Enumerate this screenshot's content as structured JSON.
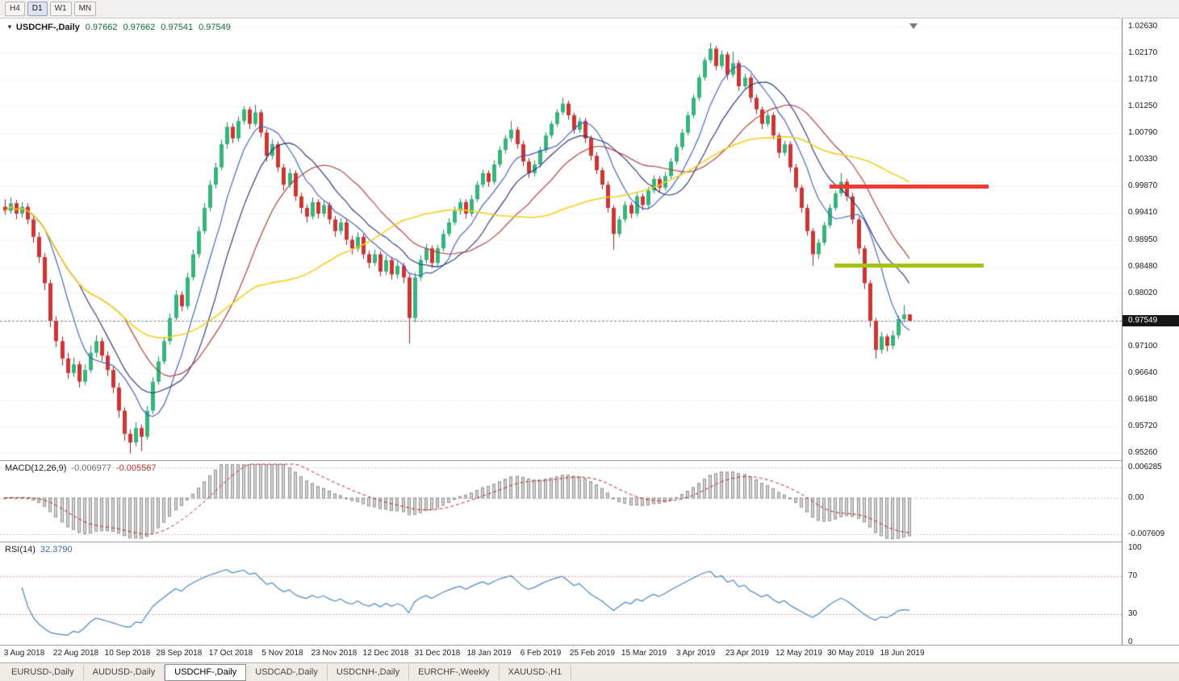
{
  "toolbar": {
    "timeframes": [
      {
        "label": "H4",
        "active": false
      },
      {
        "label": "D1",
        "active": true
      },
      {
        "label": "W1",
        "active": false
      },
      {
        "label": "MN",
        "active": false
      }
    ]
  },
  "chart_header": {
    "collapse_icon": "down-triangle",
    "symbol": "USDCHF-,Daily",
    "open": "0.97662",
    "high": "0.97662",
    "low": "0.97541",
    "close": "0.97549"
  },
  "main_chart": {
    "current_price": "0.97549",
    "bull_color": "#35b57c",
    "bull_wick": "#1d8a59",
    "bear_color": "#cf3434",
    "bear_wick": "#992222"
  },
  "macd": {
    "name": "MACD(12,26,9)",
    "value_main": "-0.006977",
    "value_signal": "-0.005567",
    "histogram_color": "#d6d6d6",
    "signal_color": "#c22020",
    "axis": [
      {
        "label": "0.006285",
        "value": 0.006285
      },
      {
        "label": "0.00",
        "value": 0
      },
      {
        "label": "-0.007609",
        "value": -0.007609
      }
    ]
  },
  "rsi": {
    "name": "RSI(14)",
    "value": "32.3790",
    "line_color": "#4a86c8",
    "levels": [
      70,
      30
    ],
    "axis": [
      {
        "label": "100",
        "value": 100
      },
      {
        "label": "70",
        "value": 70
      },
      {
        "label": "30",
        "value": 30
      },
      {
        "label": "0",
        "value": 0
      }
    ]
  },
  "tabs": [
    {
      "label": "EURUSD-,Daily",
      "active": false
    },
    {
      "label": "AUDUSD-,Daily",
      "active": false
    },
    {
      "label": "USDCHF-,Daily",
      "active": true
    },
    {
      "label": "USDCAD-,Daily",
      "active": false
    },
    {
      "label": "USDCNH-,Daily",
      "active": false
    },
    {
      "label": "EURCHF-,Weekly",
      "active": false
    },
    {
      "label": "XAUUSD-,H1",
      "active": false
    }
  ],
  "chart_data": [
    {
      "type": "candlestick",
      "title": "USDCHF-,Daily",
      "ylim": [
        0.9526,
        1.0263
      ],
      "y_ticks": [
        "1.02630",
        "1.02170",
        "1.01710",
        "1.01250",
        "1.00790",
        "1.00330",
        "0.99870",
        "0.99410",
        "0.98950",
        "0.98480",
        "0.98020",
        "",
        "0.97100",
        "0.96640",
        "0.96180",
        "0.95720",
        "0.95260"
      ],
      "x_labels": [
        "3 Aug 2018",
        "22 Aug 2018",
        "10 Sep 2018",
        "28 Sep 2018",
        "17 Oct 2018",
        "5 Nov 2018",
        "23 Nov 2018",
        "12 Dec 2018",
        "31 Dec 2018",
        "18 Jan 2019",
        "6 Feb 2019",
        "25 Feb 2019",
        "15 Mar 2019",
        "3 Apr 2019",
        "23 Apr 2019",
        "12 May 2019",
        "30 May 2019",
        "18 Jun 2019"
      ],
      "overlays": {
        "moving_averages": [
          {
            "period": 8,
            "color": "#3a56c4"
          },
          {
            "period": 14,
            "color": "#20307a"
          },
          {
            "period": 22,
            "color": "#b03030"
          },
          {
            "period": 45,
            "color": "#f2cf1d"
          }
        ],
        "horizontal_lines": [
          {
            "name": "resistance",
            "price": 0.9988,
            "color": "#ee3b34",
            "x_from": 1028,
            "x_to": 1225
          },
          {
            "name": "support",
            "price": 0.9851,
            "color": "#a6c212",
            "x_from": 1034,
            "x_to": 1219
          }
        ],
        "current_price": 0.97549
      },
      "ohlc": [
        [
          0.9952,
          0.9965,
          0.9938,
          0.9945
        ],
        [
          0.9945,
          0.9968,
          0.994,
          0.9958
        ],
        [
          0.9958,
          0.9964,
          0.993,
          0.994
        ],
        [
          0.994,
          0.996,
          0.9933,
          0.9952
        ],
        [
          0.9952,
          0.9958,
          0.9922,
          0.993
        ],
        [
          0.993,
          0.9936,
          0.989,
          0.99
        ],
        [
          0.99,
          0.9908,
          0.9855,
          0.9865
        ],
        [
          0.9865,
          0.9872,
          0.9808,
          0.982
        ],
        [
          0.982,
          0.9826,
          0.9744,
          0.9755
        ],
        [
          0.9755,
          0.9763,
          0.971,
          0.972
        ],
        [
          0.972,
          0.9728,
          0.9678,
          0.969
        ],
        [
          0.969,
          0.97,
          0.9655,
          0.9665
        ],
        [
          0.9665,
          0.9692,
          0.9658,
          0.968
        ],
        [
          0.968,
          0.9686,
          0.964,
          0.965
        ],
        [
          0.965,
          0.968,
          0.9644,
          0.967
        ],
        [
          0.967,
          0.9712,
          0.9665,
          0.97
        ],
        [
          0.97,
          0.973,
          0.9692,
          0.972
        ],
        [
          0.972,
          0.9726,
          0.9685,
          0.9695
        ],
        [
          0.9695,
          0.9702,
          0.966,
          0.967
        ],
        [
          0.967,
          0.9676,
          0.963,
          0.964
        ],
        [
          0.964,
          0.9648,
          0.9588,
          0.96
        ],
        [
          0.96,
          0.9606,
          0.9548,
          0.956
        ],
        [
          0.956,
          0.9568,
          0.9526,
          0.9545
        ],
        [
          0.9545,
          0.958,
          0.9538,
          0.957
        ],
        [
          0.957,
          0.9576,
          0.953,
          0.9555
        ],
        [
          0.9555,
          0.9608,
          0.955,
          0.96
        ],
        [
          0.96,
          0.9658,
          0.9594,
          0.965
        ],
        [
          0.965,
          0.9694,
          0.9645,
          0.9685
        ],
        [
          0.9685,
          0.9728,
          0.968,
          0.972
        ],
        [
          0.972,
          0.9768,
          0.9714,
          0.976
        ],
        [
          0.976,
          0.9808,
          0.9755,
          0.98
        ],
        [
          0.98,
          0.9806,
          0.9772,
          0.978
        ],
        [
          0.978,
          0.9838,
          0.9775,
          0.983
        ],
        [
          0.983,
          0.9878,
          0.9825,
          0.987
        ],
        [
          0.987,
          0.9918,
          0.9864,
          0.991
        ],
        [
          0.991,
          0.9958,
          0.9905,
          0.995
        ],
        [
          0.995,
          0.9998,
          0.9944,
          0.999
        ],
        [
          0.999,
          1.0028,
          0.9984,
          1.002
        ],
        [
          1.002,
          1.0068,
          1.0015,
          1.006
        ],
        [
          1.006,
          1.0098,
          1.0052,
          1.009
        ],
        [
          1.009,
          1.0096,
          1.0062,
          1.007
        ],
        [
          1.007,
          1.0108,
          1.0064,
          1.01
        ],
        [
          1.01,
          1.0126,
          1.0094,
          1.012
        ],
        [
          1.012,
          1.0125,
          1.0086,
          1.0095
        ],
        [
          1.0095,
          1.0128,
          1.009,
          1.0115
        ],
        [
          1.0115,
          1.012,
          1.0072,
          1.008
        ],
        [
          1.008,
          1.0086,
          1.003,
          1.004
        ],
        [
          1.004,
          1.0068,
          1.0034,
          1.006
        ],
        [
          1.006,
          1.0065,
          1.0012,
          1.002
        ],
        [
          1.002,
          1.0026,
          0.998,
          0.999
        ],
        [
          0.999,
          1.0018,
          0.9984,
          1.001
        ],
        [
          1.001,
          1.0015,
          0.9962,
          0.997
        ],
        [
          0.997,
          0.9976,
          0.994,
          0.995
        ],
        [
          0.995,
          0.9956,
          0.9925,
          0.9935
        ],
        [
          0.9935,
          0.9968,
          0.993,
          0.996
        ],
        [
          0.996,
          0.9965,
          0.9932,
          0.994
        ],
        [
          0.994,
          0.9962,
          0.9934,
          0.9955
        ],
        [
          0.9955,
          0.996,
          0.9922,
          0.993
        ],
        [
          0.993,
          0.9936,
          0.99,
          0.991
        ],
        [
          0.991,
          0.9932,
          0.9904,
          0.9925
        ],
        [
          0.9925,
          0.993,
          0.9886,
          0.9895
        ],
        [
          0.9895,
          0.9902,
          0.987,
          0.988
        ],
        [
          0.988,
          0.9908,
          0.9874,
          0.99
        ],
        [
          0.99,
          0.9905,
          0.9862,
          0.987
        ],
        [
          0.987,
          0.9876,
          0.9846,
          0.9855
        ],
        [
          0.9855,
          0.9878,
          0.985,
          0.987
        ],
        [
          0.987,
          0.9875,
          0.9832,
          0.984
        ],
        [
          0.984,
          0.9868,
          0.9834,
          0.986
        ],
        [
          0.986,
          0.9865,
          0.9826,
          0.9835
        ],
        [
          0.9835,
          0.9858,
          0.9828,
          0.985
        ],
        [
          0.985,
          0.9855,
          0.982,
          0.983
        ],
        [
          0.983,
          0.9838,
          0.9716,
          0.976
        ],
        [
          0.976,
          0.9838,
          0.9752,
          0.983
        ],
        [
          0.983,
          0.9868,
          0.9824,
          0.986
        ],
        [
          0.986,
          0.9888,
          0.9854,
          0.988
        ],
        [
          0.988,
          0.9885,
          0.9846,
          0.9855
        ],
        [
          0.9855,
          0.9886,
          0.985,
          0.988
        ],
        [
          0.988,
          0.9912,
          0.9874,
          0.9905
        ],
        [
          0.9905,
          0.9932,
          0.99,
          0.9925
        ],
        [
          0.9925,
          0.9952,
          0.992,
          0.9945
        ],
        [
          0.9945,
          0.9966,
          0.9938,
          0.996
        ],
        [
          0.996,
          0.9965,
          0.9932,
          0.994
        ],
        [
          0.994,
          0.9972,
          0.9935,
          0.9965
        ],
        [
          0.9965,
          0.9996,
          0.996,
          0.999
        ],
        [
          0.999,
          1.0016,
          0.9985,
          1.001
        ],
        [
          1.001,
          1.0015,
          0.9986,
          0.9995
        ],
        [
          0.9995,
          1.0032,
          0.999,
          1.0025
        ],
        [
          1.0025,
          1.0056,
          1.002,
          1.005
        ],
        [
          1.005,
          1.0076,
          1.0044,
          1.007
        ],
        [
          1.007,
          1.01,
          1.0064,
          1.0085
        ],
        [
          1.0085,
          1.009,
          1.0052,
          1.006
        ],
        [
          1.006,
          1.0066,
          1.0022,
          1.003
        ],
        [
          1.003,
          1.0036,
          1.0002,
          1.001
        ],
        [
          1.001,
          1.0032,
          1.0004,
          1.0025
        ],
        [
          1.0025,
          1.0056,
          1.002,
          1.005
        ],
        [
          1.005,
          1.008,
          1.0045,
          1.0075
        ],
        [
          1.0075,
          1.01,
          1.007,
          1.0095
        ],
        [
          1.0095,
          1.012,
          1.009,
          1.0115
        ],
        [
          1.0115,
          1.014,
          1.011,
          1.013
        ],
        [
          1.013,
          1.0135,
          1.0102,
          1.011
        ],
        [
          1.011,
          1.0115,
          1.0078,
          1.0085
        ],
        [
          1.0085,
          1.0106,
          1.008,
          1.01
        ],
        [
          1.01,
          1.0105,
          1.0062,
          1.007
        ],
        [
          1.007,
          1.0075,
          1.0032,
          1.004
        ],
        [
          1.004,
          1.0046,
          1.0008,
          1.0015
        ],
        [
          1.0015,
          1.002,
          0.9982,
          0.999
        ],
        [
          0.999,
          0.9996,
          0.9942,
          0.995
        ],
        [
          0.995,
          0.9955,
          0.9878,
          0.9905
        ],
        [
          0.9905,
          0.9936,
          0.99,
          0.993
        ],
        [
          0.993,
          0.9962,
          0.9925,
          0.9955
        ],
        [
          0.9955,
          0.996,
          0.9932,
          0.994
        ],
        [
          0.994,
          0.9976,
          0.9935,
          0.997
        ],
        [
          0.997,
          0.9975,
          0.9946,
          0.9955
        ],
        [
          0.9955,
          0.9986,
          0.995,
          0.998
        ],
        [
          0.998,
          1.0006,
          0.9975,
          1.0
        ],
        [
          1.0,
          1.0005,
          0.9976,
          0.9985
        ],
        [
          0.9985,
          1.0012,
          0.998,
          1.0005
        ],
        [
          1.0005,
          1.0036,
          1.0,
          1.003
        ],
        [
          1.003,
          1.006,
          1.0025,
          1.0055
        ],
        [
          1.0055,
          1.0086,
          1.005,
          1.008
        ],
        [
          1.008,
          1.0116,
          1.0075,
          1.011
        ],
        [
          1.011,
          1.0146,
          1.0105,
          1.014
        ],
        [
          1.014,
          1.018,
          1.0135,
          1.0175
        ],
        [
          1.0175,
          1.021,
          1.017,
          1.0205
        ],
        [
          1.0205,
          1.0235,
          1.02,
          1.0225
        ],
        [
          1.0225,
          1.023,
          1.0188,
          1.0195
        ],
        [
          1.0195,
          1.0222,
          1.019,
          1.0215
        ],
        [
          1.0215,
          1.022,
          1.0172,
          1.018
        ],
        [
          1.018,
          1.022,
          1.0175,
          1.02
        ],
        [
          1.02,
          1.0205,
          1.0152,
          1.016
        ],
        [
          1.016,
          1.0182,
          1.0155,
          1.0175
        ],
        [
          1.0175,
          1.018,
          1.0132,
          1.014
        ],
        [
          1.014,
          1.0146,
          1.0112,
          1.012
        ],
        [
          1.012,
          1.0125,
          1.0086,
          1.0095
        ],
        [
          1.0095,
          1.0116,
          1.009,
          1.011
        ],
        [
          1.011,
          1.0115,
          1.0068,
          1.0075
        ],
        [
          1.0075,
          1.008,
          1.0036,
          1.0045
        ],
        [
          1.0045,
          1.0066,
          1.004,
          1.006
        ],
        [
          1.006,
          1.0065,
          1.0012,
          1.002
        ],
        [
          1.002,
          1.0026,
          0.9978,
          0.9985
        ],
        [
          0.9985,
          0.999,
          0.9942,
          0.995
        ],
        [
          0.995,
          0.9956,
          0.9902,
          0.991
        ],
        [
          0.991,
          0.9915,
          0.985,
          0.987
        ],
        [
          0.987,
          0.9896,
          0.9862,
          0.989
        ],
        [
          0.989,
          0.9926,
          0.9885,
          0.992
        ],
        [
          0.992,
          0.9956,
          0.9915,
          0.995
        ],
        [
          0.995,
          0.998,
          0.9945,
          0.9975
        ],
        [
          0.9975,
          1.001,
          0.997,
          0.9995
        ],
        [
          0.9995,
          1.0,
          0.9962,
          0.997
        ],
        [
          0.997,
          0.9976,
          0.9922,
          0.993
        ],
        [
          0.993,
          0.9935,
          0.987,
          0.988
        ],
        [
          0.988,
          0.9885,
          0.981,
          0.982
        ],
        [
          0.982,
          0.9825,
          0.9744,
          0.9755
        ],
        [
          0.9755,
          0.976,
          0.969,
          0.9705
        ],
        [
          0.9705,
          0.9736,
          0.9698,
          0.9728
        ],
        [
          0.9728,
          0.9732,
          0.9702,
          0.9712
        ],
        [
          0.9712,
          0.9738,
          0.9706,
          0.973
        ],
        [
          0.973,
          0.9764,
          0.9724,
          0.9758
        ],
        [
          0.9758,
          0.9782,
          0.9752,
          0.9766
        ],
        [
          0.97662,
          0.97662,
          0.97541,
          0.97549
        ]
      ]
    },
    {
      "type": "bar",
      "name": "MACD(12,26,9)",
      "derived_from": "candlestick closes",
      "displayed_values": {
        "macd": -0.006977,
        "signal": -0.005567
      },
      "ylim": [
        -0.0085,
        0.007
      ],
      "y_tick_labels": [
        "0.006285",
        "0.00",
        "-0.007609"
      ]
    },
    {
      "type": "line",
      "name": "RSI(14)",
      "derived_from": "candlestick closes",
      "current": 32.379,
      "ylim": [
        0,
        100
      ],
      "levels": [
        70,
        30
      ],
      "y_tick_labels": [
        "100",
        "70",
        "30",
        "0"
      ]
    }
  ]
}
